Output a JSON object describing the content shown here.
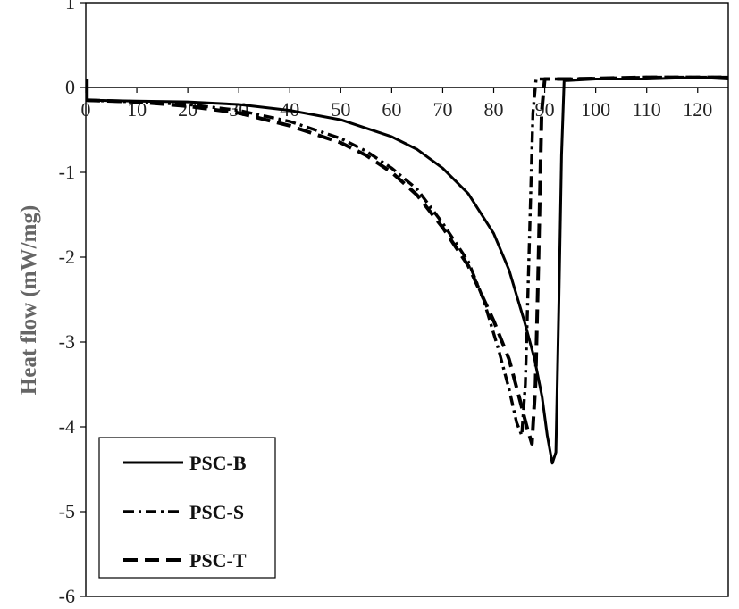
{
  "chart_data": {
    "type": "line",
    "title": "",
    "xlabel": "",
    "ylabel": "Heat flow (mW/mg)",
    "xlim": [
      0,
      126
    ],
    "ylim": [
      -6,
      1
    ],
    "x_ticks": [
      0,
      10,
      20,
      30,
      40,
      50,
      60,
      70,
      80,
      90,
      100,
      110,
      120
    ],
    "y_ticks": [
      1,
      0,
      -1,
      -2,
      -3,
      -4,
      -5,
      -6
    ],
    "grid": false,
    "legend_position": "bottom-left",
    "series": [
      {
        "name": "PSC-B",
        "style": "solid",
        "color": "#000000",
        "points": [
          [
            0,
            -0.15
          ],
          [
            10,
            -0.16
          ],
          [
            20,
            -0.17
          ],
          [
            30,
            -0.2
          ],
          [
            40,
            -0.27
          ],
          [
            50,
            -0.38
          ],
          [
            60,
            -0.58
          ],
          [
            65,
            -0.73
          ],
          [
            70,
            -0.95
          ],
          [
            75,
            -1.25
          ],
          [
            80,
            -1.72
          ],
          [
            83,
            -2.15
          ],
          [
            86,
            -2.75
          ],
          [
            88,
            -3.2
          ],
          [
            89.5,
            -3.65
          ],
          [
            90.5,
            -4.1
          ],
          [
            91.5,
            -4.43
          ],
          [
            92.2,
            -4.3
          ],
          [
            92.8,
            -2.5
          ],
          [
            93.3,
            -0.8
          ],
          [
            93.8,
            0.08
          ],
          [
            100,
            0.1
          ],
          [
            110,
            0.1
          ],
          [
            120,
            0.12
          ],
          [
            126,
            0.1
          ]
        ]
      },
      {
        "name": "PSC-S",
        "style": "dash-dot",
        "color": "#000000",
        "points": [
          [
            0,
            -0.15
          ],
          [
            10,
            -0.17
          ],
          [
            20,
            -0.2
          ],
          [
            30,
            -0.27
          ],
          [
            40,
            -0.4
          ],
          [
            50,
            -0.6
          ],
          [
            55,
            -0.75
          ],
          [
            60,
            -0.95
          ],
          [
            65,
            -1.2
          ],
          [
            70,
            -1.6
          ],
          [
            75,
            -2.05
          ],
          [
            78,
            -2.5
          ],
          [
            81,
            -3.1
          ],
          [
            83,
            -3.55
          ],
          [
            84.5,
            -3.95
          ],
          [
            85.5,
            -4.1
          ],
          [
            86.2,
            -3.5
          ],
          [
            87,
            -1.8
          ],
          [
            87.7,
            -0.3
          ],
          [
            88.3,
            0.1
          ],
          [
            95,
            0.1
          ],
          [
            110,
            0.12
          ],
          [
            126,
            0.12
          ]
        ]
      },
      {
        "name": "PSC-T",
        "style": "dashed",
        "color": "#000000",
        "points": [
          [
            0,
            -0.15
          ],
          [
            10,
            -0.17
          ],
          [
            20,
            -0.22
          ],
          [
            30,
            -0.3
          ],
          [
            40,
            -0.45
          ],
          [
            50,
            -0.65
          ],
          [
            55,
            -0.8
          ],
          [
            60,
            -1.0
          ],
          [
            65,
            -1.27
          ],
          [
            70,
            -1.65
          ],
          [
            75,
            -2.1
          ],
          [
            80,
            -2.75
          ],
          [
            83,
            -3.2
          ],
          [
            85,
            -3.65
          ],
          [
            86.5,
            -4.0
          ],
          [
            87.5,
            -4.2
          ],
          [
            88.2,
            -3.5
          ],
          [
            88.8,
            -2.0
          ],
          [
            89.4,
            -0.3
          ],
          [
            90,
            0.1
          ],
          [
            95,
            0.1
          ],
          [
            110,
            0.12
          ],
          [
            126,
            0.12
          ]
        ]
      }
    ]
  }
}
